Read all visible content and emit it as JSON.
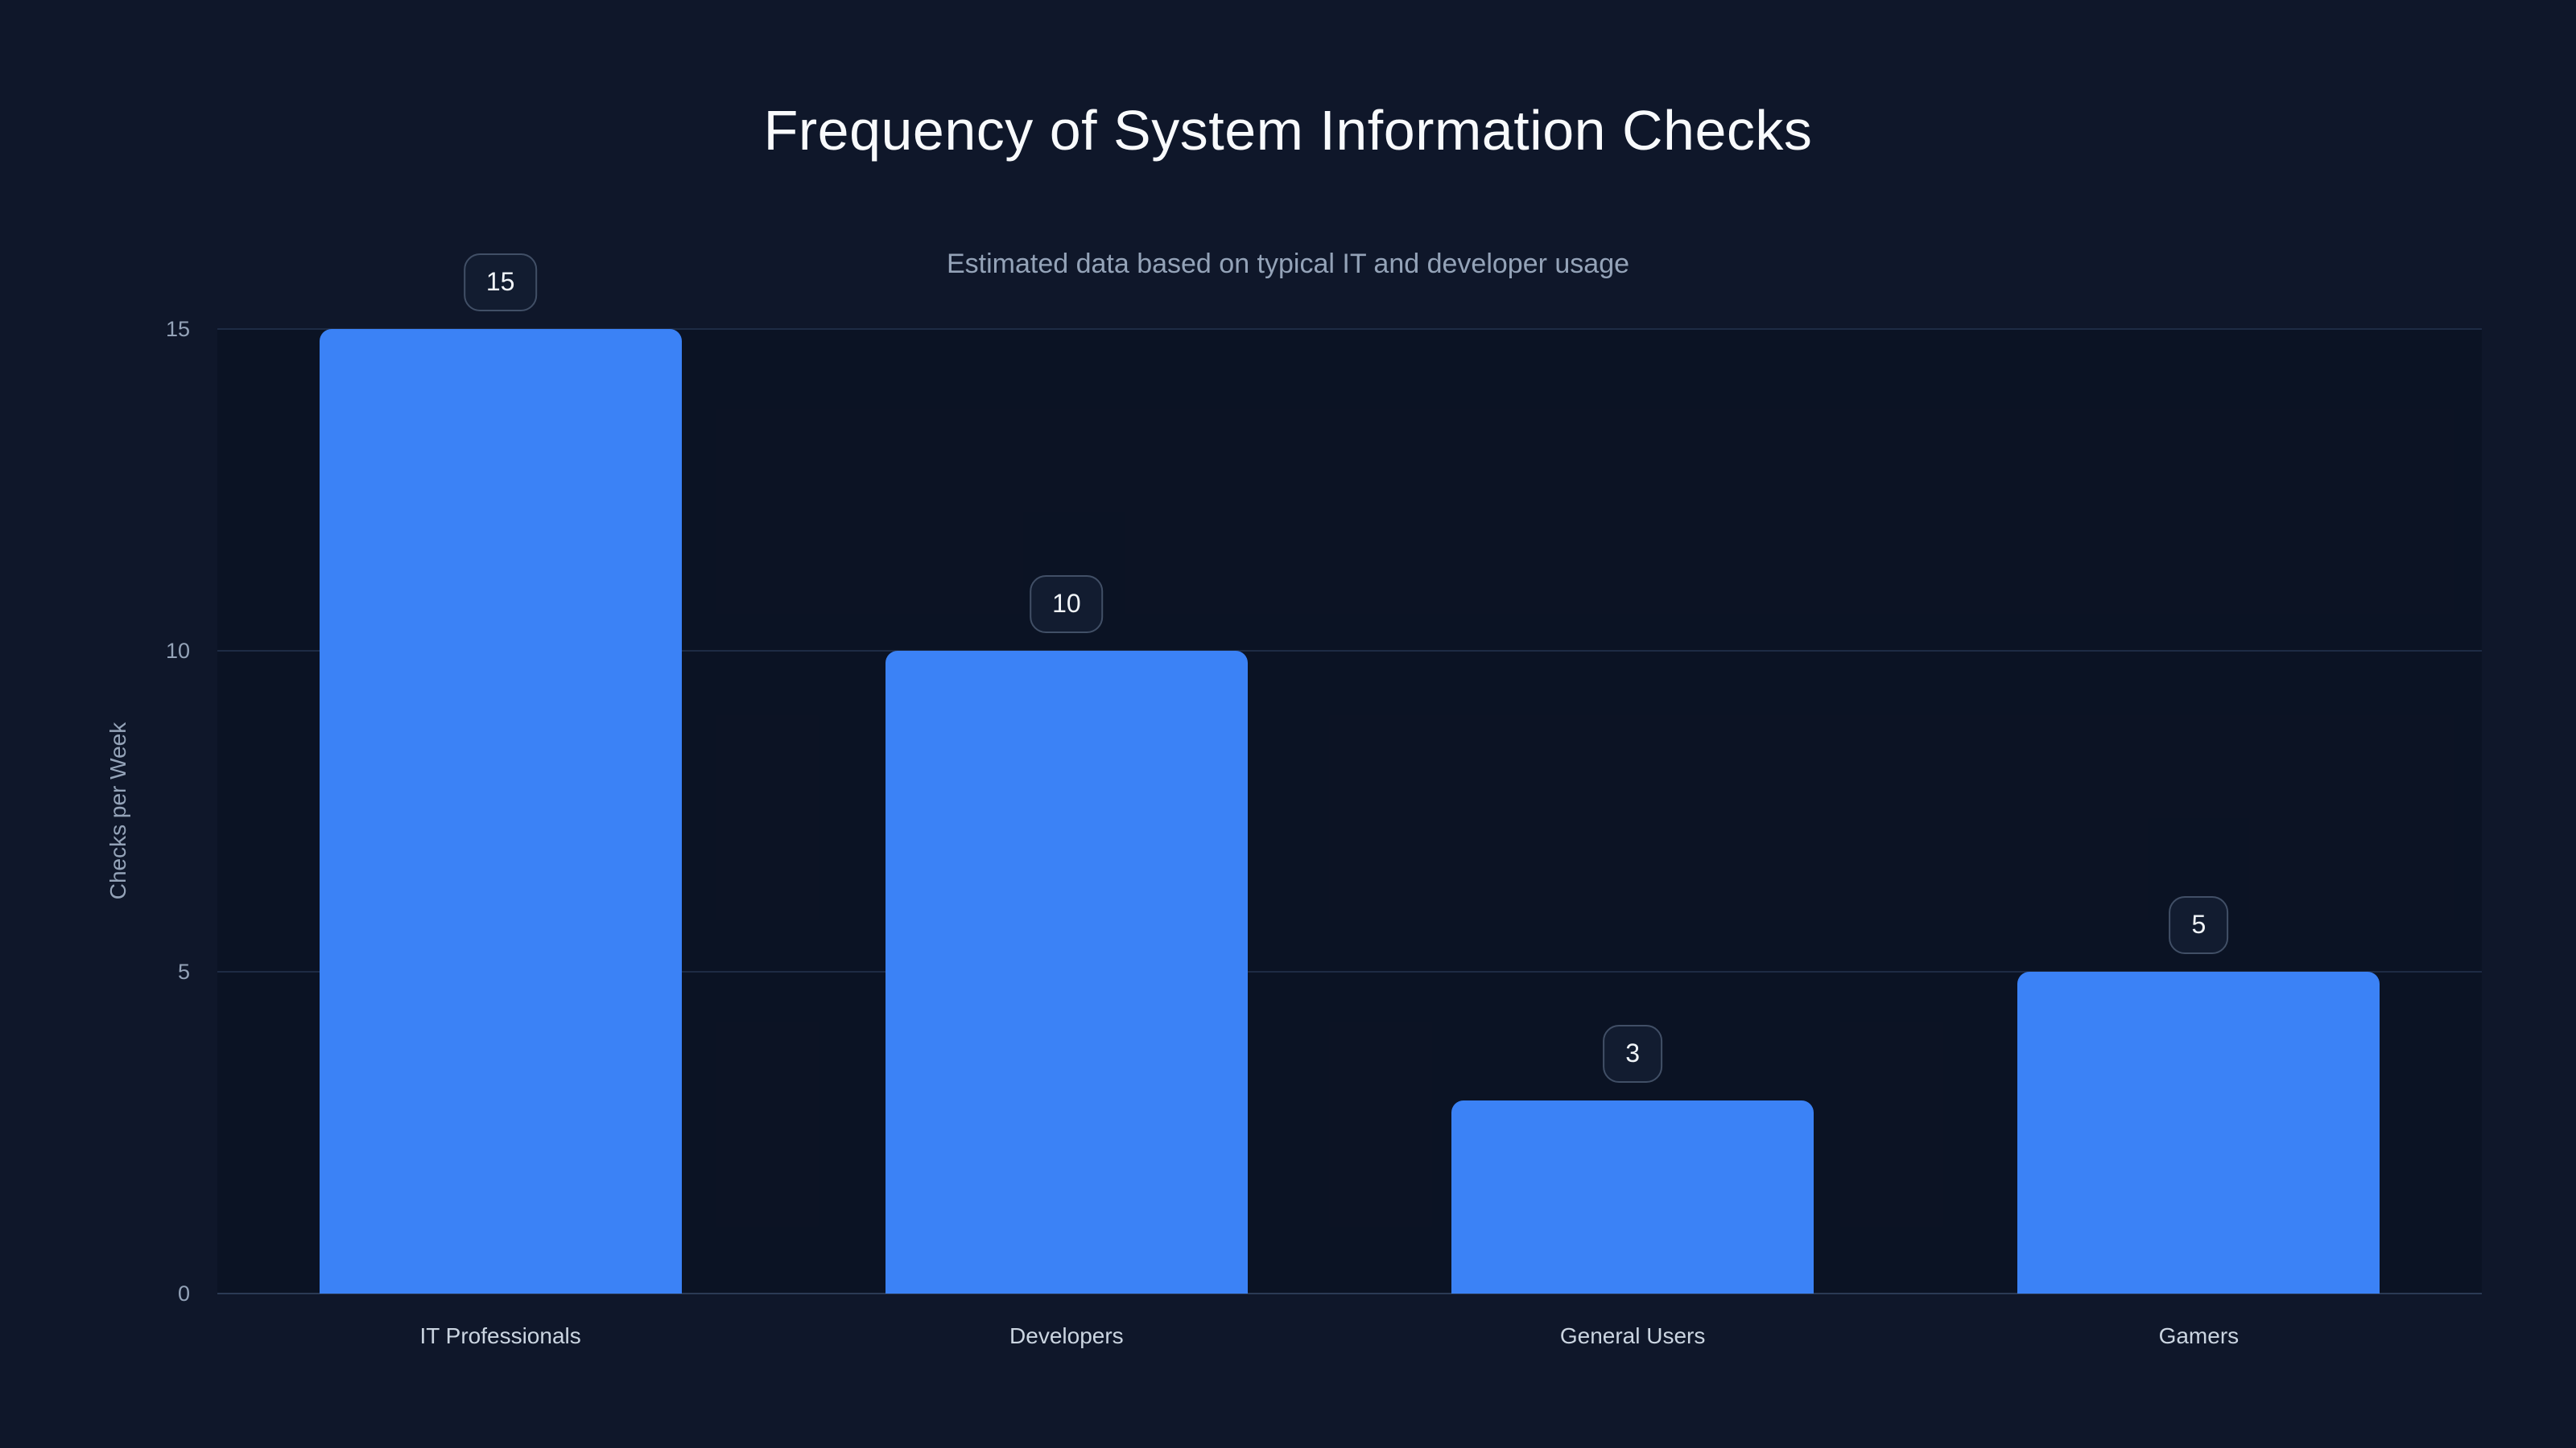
{
  "page": {
    "background": "#0f172a"
  },
  "chart_data": {
    "type": "bar",
    "title": "Frequency of System Information Checks",
    "subtitle": "Estimated data based on typical IT and developer usage",
    "categories": [
      "IT Professionals",
      "Developers",
      "General Users",
      "Gamers"
    ],
    "values": [
      15,
      10,
      3,
      5
    ],
    "value_labels": [
      "15",
      "10",
      "3",
      "5"
    ],
    "xlabel": "",
    "ylabel": "Checks per Week",
    "ylim": [
      0,
      15
    ],
    "yticks": [
      0,
      5,
      10,
      15
    ],
    "grid": true,
    "legend": false,
    "layout": {
      "value_badges": "rounded outlined pill above each bar",
      "grid_lines": "horizontal at 5, 10, 15",
      "bars": "rounded top corners"
    },
    "colors": {
      "background": "#0f172a",
      "plot_background": "rgba(5, 11, 26, 0.35)",
      "bar": "#3b82f6",
      "grid_line": "#1e2b44",
      "axis_line": "#2b3a54",
      "tick_text": "#94a3b8",
      "category_text": "#cbd5e1",
      "title_text": "#f8fafc",
      "subtitle_text": "#94a3b8",
      "badge_background": "#121c30",
      "badge_border": "#414f66",
      "badge_text": "#f1f5f9"
    }
  }
}
